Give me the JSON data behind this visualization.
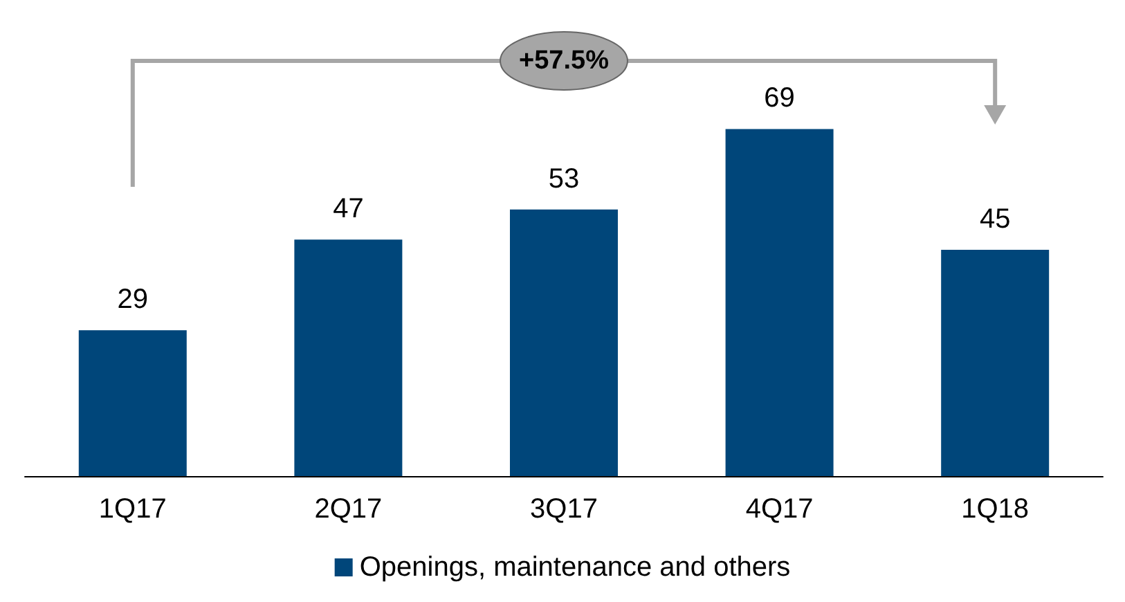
{
  "chart_data": {
    "type": "bar",
    "categories": [
      "1Q17",
      "2Q17",
      "3Q17",
      "4Q17",
      "1Q18"
    ],
    "series": [
      {
        "name": "Openings, maintenance and others",
        "color": "#00467a",
        "values": [
          29,
          47,
          53,
          69,
          45
        ]
      }
    ],
    "data_labels": true,
    "legend": "bottom",
    "annotations": [
      "+57.5%"
    ]
  }
}
